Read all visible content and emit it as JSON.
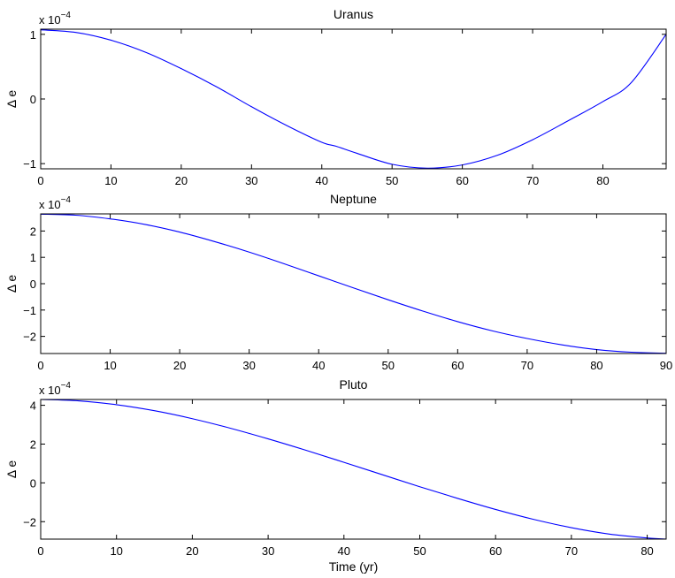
{
  "chart_data": [
    {
      "type": "line",
      "title": "Uranus",
      "xlabel": "",
      "ylabel": "Δ e",
      "exponent_label": "x 10",
      "exponent_power": "−4",
      "xlim": [
        0,
        89
      ],
      "ylim": [
        -1.08,
        1.08
      ],
      "x_ticks": [
        0,
        10,
        20,
        30,
        40,
        50,
        60,
        70,
        80
      ],
      "y_ticks": [
        -1,
        0,
        1
      ],
      "y_tick_labels": [
        "−1",
        "0",
        "1"
      ],
      "series": [
        {
          "color": "#0000ff",
          "x": [
            0,
            5,
            10,
            15,
            20,
            25,
            30,
            35,
            40,
            42,
            45,
            50,
            55,
            60,
            65,
            70,
            75,
            80,
            84,
            89
          ],
          "y": [
            1.07,
            1.03,
            0.91,
            0.72,
            0.47,
            0.19,
            -0.12,
            -0.41,
            -0.67,
            -0.73,
            -0.84,
            -1.01,
            -1.07,
            -1.02,
            -0.87,
            -0.63,
            -0.34,
            -0.04,
            0.25,
            1.0
          ]
        }
      ]
    },
    {
      "type": "line",
      "title": "Neptune",
      "xlabel": "",
      "ylabel": "Δ e",
      "exponent_label": "x 10",
      "exponent_power": "−4",
      "xlim": [
        0,
        90
      ],
      "ylim": [
        -2.65,
        2.65
      ],
      "x_ticks": [
        0,
        10,
        20,
        30,
        40,
        50,
        60,
        70,
        80,
        90
      ],
      "y_ticks": [
        -2,
        -1,
        0,
        1,
        2
      ],
      "y_tick_labels": [
        "−2",
        "−1",
        "0",
        "1",
        "2"
      ],
      "series": [
        {
          "color": "#0000ff",
          "x": [
            0,
            5,
            10,
            15,
            20,
            25,
            30,
            35,
            40,
            45,
            50,
            55,
            60,
            65,
            70,
            75,
            80,
            85,
            90
          ],
          "y": [
            2.64,
            2.6,
            2.46,
            2.25,
            1.96,
            1.6,
            1.2,
            0.76,
            0.3,
            -0.16,
            -0.61,
            -1.04,
            -1.44,
            -1.79,
            -2.08,
            -2.32,
            -2.5,
            -2.6,
            -2.64
          ]
        }
      ]
    },
    {
      "type": "line",
      "title": "Pluto",
      "xlabel": "Time (yr)",
      "ylabel": "Δ e",
      "exponent_label": "x 10",
      "exponent_power": "−4",
      "xlim": [
        0,
        82.5
      ],
      "ylim": [
        -2.9,
        4.3
      ],
      "x_ticks": [
        0,
        10,
        20,
        30,
        40,
        50,
        60,
        70,
        80
      ],
      "y_ticks": [
        -2,
        0,
        2,
        4
      ],
      "y_tick_labels": [
        "−2",
        "0",
        "2",
        "4"
      ],
      "series": [
        {
          "color": "#0000ff",
          "x": [
            0,
            5,
            10,
            15,
            20,
            25,
            30,
            35,
            40,
            45,
            50,
            55,
            60,
            65,
            70,
            75,
            80,
            82.5
          ],
          "y": [
            4.3,
            4.23,
            4.03,
            3.72,
            3.31,
            2.82,
            2.27,
            1.68,
            1.06,
            0.43,
            -0.2,
            -0.8,
            -1.37,
            -1.88,
            -2.31,
            -2.64,
            -2.84,
            -2.9
          ]
        }
      ]
    }
  ]
}
